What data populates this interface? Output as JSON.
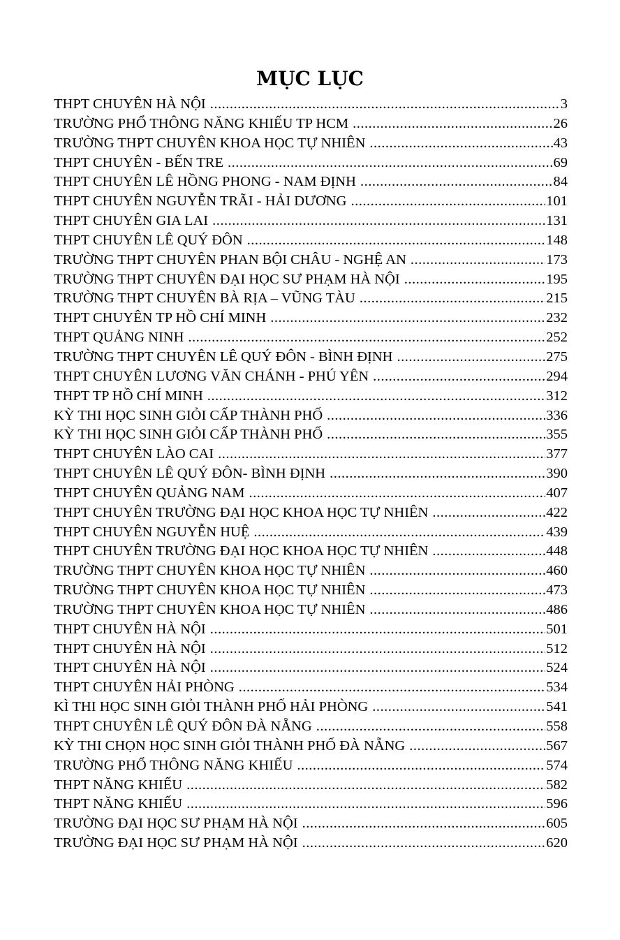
{
  "title": "MỤC LỤC",
  "entries": [
    {
      "name": "THPT CHUYÊN HÀ NỘI",
      "page": "3"
    },
    {
      "name": "TRƯỜNG PHỔ THÔNG NĂNG KHIẾU TP HCM",
      "page": "26"
    },
    {
      "name": "TRƯỜNG THPT CHUYÊN KHOA HỌC TỰ NHIÊN",
      "page": "43"
    },
    {
      "name": "THPT CHUYÊN - BẾN TRE",
      "page": "69"
    },
    {
      "name": "THPT CHUYÊN LÊ HỒNG PHONG - NAM ĐỊNH",
      "page": "84"
    },
    {
      "name": "THPT CHUYÊN NGUYỄN TRÃI - HẢI DƯƠNG",
      "page": "101"
    },
    {
      "name": "THPT CHUYÊN GIA LAI",
      "page": "131"
    },
    {
      "name": "THPT CHUYÊN LÊ QUÝ ĐÔN",
      "page": "148"
    },
    {
      "name": "TRƯỜNG THPT CHUYÊN PHAN BỘI CHÂU - NGHỆ AN",
      "page": "173"
    },
    {
      "name": "TRƯỜNG THPT CHUYÊN ĐẠI HỌC SƯ PHẠM HÀ NỘI",
      "page": "195"
    },
    {
      "name": "TRƯỜNG THPT CHUYÊN BÀ RỊA – VŨNG TÀU",
      "page": "215"
    },
    {
      "name": "THPT CHUYÊN TP HỒ CHÍ MINH",
      "page": "232"
    },
    {
      "name": "THPT QUẢNG NINH",
      "page": "252"
    },
    {
      "name": "TRƯỜNG THPT CHUYÊN LÊ QUÝ ĐÔN - BÌNH ĐỊNH",
      "page": "275"
    },
    {
      "name": "THPT CHUYÊN LƯƠNG VĂN CHÁNH - PHÚ YÊN",
      "page": "294"
    },
    {
      "name": "THPT TP HỒ CHÍ MINH",
      "page": "312"
    },
    {
      "name": "KỲ THI HỌC SINH GIỎI CẤP THÀNH PHỐ",
      "page": "336"
    },
    {
      "name": "KỲ THI HỌC SINH GIỎI CẤP THÀNH PHỐ",
      "page": "355"
    },
    {
      "name": "THPT CHUYÊN LÀO CAI",
      "page": "377"
    },
    {
      "name": "THPT CHUYÊN LÊ QUÝ ĐÔN- BÌNH ĐỊNH",
      "page": "390"
    },
    {
      "name": "THPT CHUYÊN QUẢNG NAM",
      "page": "407"
    },
    {
      "name": "THPT CHUYÊN TRƯỜNG ĐẠI HỌC KHOA HỌC TỰ NHIÊN",
      "page": "422"
    },
    {
      "name": "THPT CHUYÊN NGUYỄN HUỆ",
      "page": "439"
    },
    {
      "name": "THPT CHUYÊN TRƯỜNG ĐẠI HỌC KHOA HỌC TỰ NHIÊN",
      "page": "448"
    },
    {
      "name": "TRƯỜNG THPT CHUYÊN KHOA HỌC TỰ NHIÊN",
      "page": "460"
    },
    {
      "name": "TRƯỜNG THPT CHUYÊN KHOA HỌC TỰ NHIÊN",
      "page": "473"
    },
    {
      "name": "TRƯỜNG THPT CHUYÊN KHOA HỌC TỰ NHIÊN",
      "page": "486"
    },
    {
      "name": "THPT CHUYÊN HÀ NỘI",
      "page": "501"
    },
    {
      "name": "THPT CHUYÊN HÀ NỘI",
      "page": "512"
    },
    {
      "name": "THPT CHUYÊN HÀ NỘI",
      "page": "524"
    },
    {
      "name": "THPT CHUYÊN HẢI PHÒNG",
      "page": "534"
    },
    {
      "name": "KÌ THI HỌC SINH GIỎI THÀNH PHỐ HẢI PHÒNG",
      "page": "541"
    },
    {
      "name": "THPT CHUYÊN LÊ QUÝ ĐÔN ĐÀ NẴNG",
      "page": "558"
    },
    {
      "name": "KỲ THI CHỌN HỌC SINH GIỎI THÀNH PHỐ ĐÀ NẴNG",
      "page": "567"
    },
    {
      "name": "TRƯỜNG PHỔ THÔNG NĂNG KHIẾU",
      "page": "574"
    },
    {
      "name": "THPT NĂNG KHIẾU",
      "page": "582"
    },
    {
      "name": "THPT NĂNG KHIẾU",
      "page": "596"
    },
    {
      "name": "TRƯỜNG ĐẠI HỌC SƯ PHẠM HÀ NỘI",
      "page": "605"
    },
    {
      "name": "TRƯỜNG ĐẠI HỌC SƯ PHẠM HÀ NỘI",
      "page": "620"
    }
  ]
}
